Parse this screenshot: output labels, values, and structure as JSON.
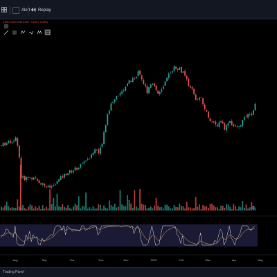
{
  "toolbar": {
    "alert_label": "Alert",
    "replay_label": "Replay"
  },
  "legend": {
    "ohlc_text": "0.000 0.000 0.000 0.000 −0.000 (−0.00%)"
  },
  "x_axis_labels": [
    "Aug",
    "Sep",
    "Oct",
    "Nov",
    "Dec",
    "2025",
    "Feb",
    "Mar",
    "Apr",
    "May"
  ],
  "bottom_bar": {
    "trading_panel_label": "Trading Panel"
  },
  "colors": {
    "up": "#26a69a",
    "down": "#ef5350",
    "background": "#000000",
    "topbar": "#131722",
    "osc_fast": "#e0e3eb",
    "osc_slow": "#f0c060",
    "osc_band": "#1e1d3a"
  },
  "icons": {
    "grid": "grid-icon",
    "alert": "alarm-clock-icon",
    "replay": "rewind-icon",
    "toolbar_menu": "hamburger-icon",
    "trend_line": "trend-line-icon",
    "fib": "fib-icon",
    "pattern": "pattern-icon",
    "brush": "brush-icon",
    "text": "text-icon",
    "measure": "measure-icon"
  },
  "chart_data": {
    "type": "candlestick",
    "x_labels": [
      "Aug",
      "Sep",
      "Oct",
      "Nov",
      "Dec",
      "2025",
      "Feb",
      "Mar",
      "Apr",
      "May"
    ],
    "path_points": [
      [
        0,
        0.45
      ],
      [
        8,
        0.47
      ],
      [
        16,
        0.48
      ],
      [
        22,
        0.5
      ],
      [
        26,
        0.44
      ],
      [
        29,
        0.25
      ],
      [
        34,
        0.24
      ],
      [
        42,
        0.25
      ],
      [
        52,
        0.23
      ],
      [
        62,
        0.2
      ],
      [
        70,
        0.18
      ],
      [
        78,
        0.2
      ],
      [
        86,
        0.24
      ],
      [
        94,
        0.27
      ],
      [
        102,
        0.29
      ],
      [
        112,
        0.31
      ],
      [
        120,
        0.35
      ],
      [
        130,
        0.38
      ],
      [
        138,
        0.44
      ],
      [
        142,
        0.4
      ],
      [
        148,
        0.5
      ],
      [
        152,
        0.6
      ],
      [
        156,
        0.68
      ],
      [
        162,
        0.74
      ],
      [
        170,
        0.78
      ],
      [
        178,
        0.82
      ],
      [
        186,
        0.87
      ],
      [
        194,
        0.9
      ],
      [
        200,
        0.93
      ],
      [
        206,
        0.86
      ],
      [
        212,
        0.8
      ],
      [
        216,
        0.86
      ],
      [
        222,
        0.84
      ],
      [
        228,
        0.78
      ],
      [
        234,
        0.82
      ],
      [
        240,
        0.88
      ],
      [
        246,
        0.94
      ],
      [
        252,
        0.96
      ],
      [
        258,
        0.95
      ],
      [
        264,
        0.92
      ],
      [
        270,
        0.86
      ],
      [
        276,
        0.82
      ],
      [
        282,
        0.74
      ],
      [
        288,
        0.77
      ],
      [
        294,
        0.7
      ],
      [
        300,
        0.64
      ],
      [
        306,
        0.6
      ],
      [
        312,
        0.58
      ],
      [
        318,
        0.62
      ],
      [
        324,
        0.56
      ],
      [
        330,
        0.62
      ],
      [
        336,
        0.58
      ],
      [
        342,
        0.56
      ],
      [
        348,
        0.6
      ],
      [
        354,
        0.64
      ],
      [
        360,
        0.65
      ],
      [
        364,
        0.66
      ],
      [
        368,
        0.72
      ]
    ]
  }
}
